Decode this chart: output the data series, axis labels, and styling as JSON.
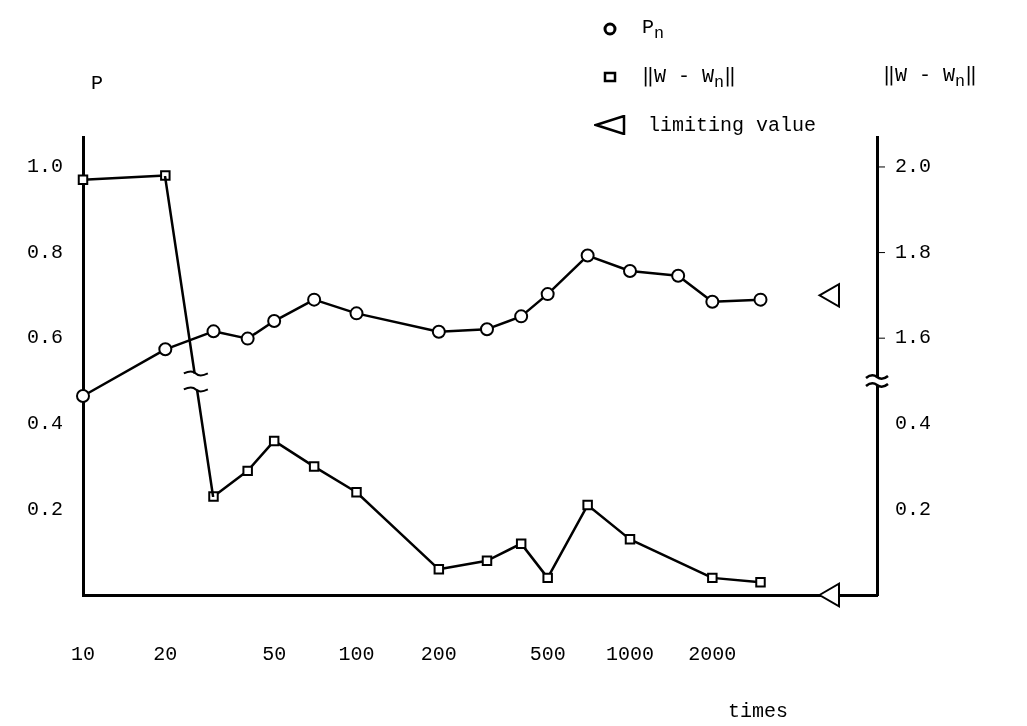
{
  "chart_data": {
    "type": "line",
    "xlabel": "times",
    "ylabel": "P",
    "y2label": "‖W - W$_{n}$‖",
    "x": [
      10,
      20,
      30,
      40,
      50,
      70,
      100,
      200,
      300,
      400,
      500,
      700,
      1000,
      1500,
      2000,
      3000
    ],
    "series": [
      {
        "name": "P$_{n}$",
        "color": "#000000",
        "marker": "circle",
        "values": [
          0.465,
          0.574,
          0.616,
          0.599,
          0.64,
          0.69,
          0.658,
          0.615,
          0.621,
          0.651,
          0.703,
          0.793,
          0.757,
          0.746,
          0.685,
          0.69
        ]
      },
      {
        "name": "‖W - W$_{n}$‖",
        "color": "#000000",
        "marker": "square",
        "axis": "y3",
        "x": [
          10,
          20
        ],
        "values": [
          1.97,
          1.98
        ]
      },
      {
        "color": "#000000",
        "marker": "square",
        "axis": "y2",
        "x": [
          30,
          40,
          50,
          70,
          100,
          200,
          300,
          400,
          500,
          700,
          1000,
          2000,
          3000
        ],
        "values": [
          0.23,
          0.29,
          0.36,
          0.3,
          0.24,
          0.06,
          0.08,
          0.12,
          0.04,
          0.21,
          0.13,
          0.04,
          0.03
        ]
      },
      {
        "name": "limiting value",
        "type": "scatter",
        "color": "#000000",
        "marker": "triangle",
        "x": [
          5500
        ],
        "values": [
          0.7
        ]
      },
      {
        "type": "scatter",
        "color": "#000000",
        "marker": "triangle",
        "axis": "y2",
        "x": [
          5500
        ],
        "values": [
          0
        ]
      }
    ],
    "log": "x",
    "xlim": [
      10,
      8000
    ],
    "xticks": [
      10,
      20,
      50,
      100,
      200,
      500,
      1000,
      2000
    ],
    "ylim": [
      0,
      1.07
    ],
    "yticks": [
      0.2,
      0.4,
      0.6,
      0.8,
      {
        "value": 1,
        "label": "1.0"
      }
    ],
    "y2lim": [
      0,
      1.07
    ],
    "y2ticks": [
      0.2,
      0.4
    ],
    "y3lim": [
      1.0,
      2.07
    ],
    "y3ticks": [
      1.6,
      1.8,
      {
        "value": 2,
        "label": "2.0"
      }
    ],
    "grid": false,
    "legend": "top right",
    "line_style": "solid"
  }
}
